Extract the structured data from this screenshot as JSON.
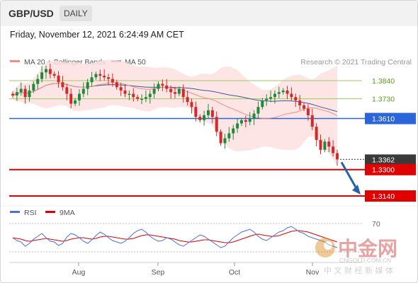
{
  "header": {
    "symbol": "GBP/USD",
    "timeframe": "DAILY"
  },
  "datetime": "Friday, November 12, 2021 6:24:49 AM CET",
  "legend": {
    "ma20": "MA 20 + Bollinger Bands",
    "ma50": "MA 50",
    "copyright": "Research © 2021 Trading Central",
    "rsi": "RSI",
    "ma9": "9MA"
  },
  "colors": {
    "ma20": "#f28b82",
    "ma50": "#3b5998",
    "band_fill": "#fde0e0",
    "resistance": "#9acd5a",
    "pivot": "#2a66d9",
    "support": "#e00000",
    "bull": "#1f8b3a",
    "bear": "#d02a2a",
    "rsi": "#4a6fdc",
    "rsi_ma": "#e00000",
    "arrow": "#2563a8",
    "last_price_bg": "#3a3a3a"
  },
  "chart_data": {
    "type": "candlestick",
    "title": "GBP/USD",
    "timeframe": "DAILY",
    "xlabel": "",
    "ylabel": "",
    "x_ticks": [
      "Aug",
      "Sep",
      "Oct",
      "Nov"
    ],
    "ylim": [
      1.308,
      1.399
    ],
    "period": [
      "2021-07-19",
      "2021-11-11"
    ],
    "last_close": 1.3362,
    "close_series": [
      1.375,
      1.377,
      1.379,
      1.374,
      1.378,
      1.382,
      1.385,
      1.389,
      1.391,
      1.388,
      1.387,
      1.383,
      1.38,
      1.376,
      1.37,
      1.372,
      1.376,
      1.379,
      1.383,
      1.386,
      1.388,
      1.387,
      1.386,
      1.385,
      1.383,
      1.38,
      1.378,
      1.376,
      1.376,
      1.374,
      1.373,
      1.373,
      1.374,
      1.376,
      1.379,
      1.382,
      1.381,
      1.379,
      1.377,
      1.376,
      1.379,
      1.374,
      1.371,
      1.368,
      1.362,
      1.36,
      1.363,
      1.366,
      1.362,
      1.353,
      1.346,
      1.349,
      1.352,
      1.355,
      1.358,
      1.36,
      1.359,
      1.361,
      1.364,
      1.368,
      1.372,
      1.373,
      1.374,
      1.376,
      1.377,
      1.378,
      1.376,
      1.374,
      1.372,
      1.369,
      1.367,
      1.363,
      1.356,
      1.348,
      1.342,
      1.347,
      1.344,
      1.34,
      1.3362
    ],
    "levels": [
      {
        "label": "1.3840",
        "kind": "resistance"
      },
      {
        "label": "1.3730",
        "kind": "resistance"
      },
      {
        "label": "1.3610",
        "kind": "pivot"
      },
      {
        "label": "1.3362",
        "kind": "last"
      },
      {
        "label": "1.3300",
        "kind": "support"
      },
      {
        "label": "1.3140",
        "kind": "support"
      }
    ],
    "rsi": {
      "level_label": "70",
      "ylim": [
        20,
        80
      ],
      "rsi_values": [
        50,
        46,
        44,
        38,
        42,
        48,
        52,
        56,
        50,
        45,
        44,
        39,
        42,
        51,
        56,
        54,
        50,
        45,
        42,
        47,
        53,
        58,
        55,
        50,
        46,
        44,
        42,
        45,
        50,
        56,
        60,
        62,
        58,
        52,
        48,
        45,
        46,
        50,
        48,
        44,
        40,
        38,
        42,
        46,
        50,
        54,
        52,
        48,
        44,
        40,
        36,
        38,
        44,
        50,
        54,
        58,
        60,
        62,
        58,
        52,
        48,
        46,
        50,
        54,
        58,
        60,
        64,
        66,
        62,
        58,
        56,
        52,
        50,
        48,
        46,
        44,
        40,
        38,
        36
      ],
      "ma9_values": [
        50,
        49,
        48,
        46,
        45,
        46,
        47,
        48,
        49,
        48,
        47,
        46,
        45,
        46,
        48,
        49,
        50,
        50,
        49,
        48,
        49,
        51,
        52,
        52,
        51,
        50,
        49,
        48,
        48,
        49,
        51,
        53,
        54,
        54,
        53,
        52,
        51,
        50,
        49,
        48,
        46,
        45,
        44,
        44,
        45,
        46,
        47,
        47,
        46,
        45,
        44,
        43,
        43,
        44,
        46,
        48,
        50,
        52,
        54,
        55,
        54,
        53,
        52,
        52,
        53,
        55,
        57,
        59,
        60,
        60,
        59,
        58,
        56,
        54,
        52,
        50,
        48,
        46,
        44
      ]
    }
  },
  "watermark": {
    "logo_text": "中金网",
    "url": "CNGOLD.COM.CN",
    "tagline": "中 文 财 经 新 媒 体"
  }
}
